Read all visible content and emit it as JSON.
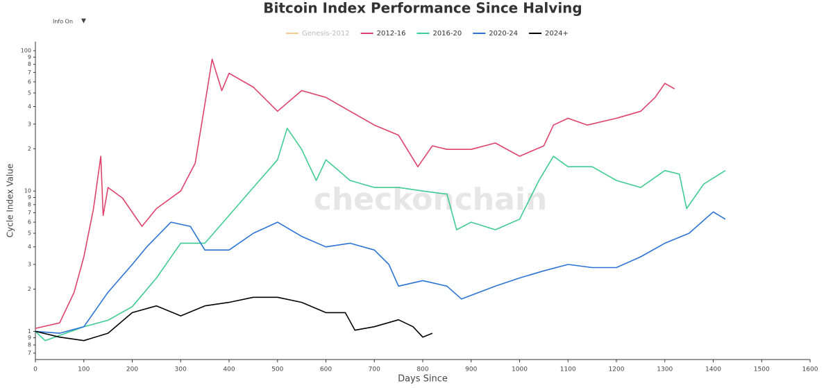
{
  "controls": {
    "info_toggle": "Info On",
    "dropdown_icon": "▼"
  },
  "chart_data": {
    "type": "line",
    "title": "Bitcoin Index Performance Since Halving",
    "watermark": "checkonchain",
    "x_label": "Days Since",
    "y_label": "Cycle Index Value",
    "log_y": true,
    "legend": "top",
    "xlim": [
      0,
      1600
    ],
    "xticks": [
      0,
      100,
      200,
      300,
      400,
      500,
      600,
      700,
      800,
      900,
      1000,
      1100,
      1200,
      1300,
      1400,
      1500,
      1600
    ],
    "ylim": [
      0.63,
      116
    ],
    "yticks": [
      {
        "value": 0.7,
        "label": "7"
      },
      {
        "value": 0.8,
        "label": "8"
      },
      {
        "value": 0.9,
        "label": "9"
      },
      1,
      2,
      3,
      4,
      5,
      6,
      7,
      8,
      9,
      10,
      {
        "value": 20,
        "label": "2"
      },
      {
        "value": 30,
        "label": "3"
      },
      {
        "value": 40,
        "label": "4"
      },
      {
        "value": 50,
        "label": "5"
      },
      {
        "value": 60,
        "label": "6"
      },
      {
        "value": 70,
        "label": "7"
      },
      {
        "value": 80,
        "label": "8"
      },
      {
        "value": 90,
        "label": "9"
      },
      100
    ],
    "series": [
      {
        "name": "Genesis-2012",
        "color": "#f5c992",
        "visible": false
      },
      {
        "name": "2012-16",
        "color": "#e0416b",
        "x": [
          0,
          50,
          80,
          100,
          120,
          135,
          140,
          150,
          180,
          220,
          250,
          300,
          330,
          350,
          365,
          385,
          400,
          450,
          500,
          550,
          600,
          650,
          700,
          750,
          790,
          820,
          850,
          900,
          950,
          1000,
          1050,
          1070,
          1100,
          1140,
          1200,
          1250,
          1280,
          1300,
          1320
        ],
        "values": [
          1.05,
          1.15,
          1.9,
          3.4,
          7.5,
          17.7,
          6.7,
          10.6,
          8.9,
          5.6,
          7.5,
          10,
          15.8,
          41.5,
          87,
          52,
          69,
          55,
          37,
          52,
          46.5,
          37,
          29.5,
          25,
          14.9,
          21,
          19.8,
          19.8,
          22,
          17.7,
          21,
          29.5,
          33,
          29.5,
          33,
          37,
          46.5,
          58.5,
          53.5
        ]
      },
      {
        "name": "2016-20",
        "color": "#3dcc91",
        "x": [
          0,
          20,
          100,
          150,
          200,
          250,
          300,
          350,
          400,
          450,
          500,
          520,
          550,
          580,
          600,
          650,
          700,
          750,
          800,
          850,
          870,
          900,
          950,
          1000,
          1040,
          1070,
          1100,
          1150,
          1200,
          1250,
          1300,
          1330,
          1345,
          1380,
          1425
        ],
        "values": [
          1,
          0.86,
          1.08,
          1.2,
          1.5,
          2.4,
          4.25,
          4.25,
          6.7,
          10.6,
          16.7,
          28,
          19.8,
          11.9,
          16.7,
          11.9,
          10.6,
          10.6,
          10,
          9.5,
          5.3,
          6,
          5.3,
          6.3,
          11.9,
          17.7,
          14.9,
          14.9,
          11.9,
          10.6,
          14,
          13.2,
          7.5,
          11.2,
          14
        ]
      },
      {
        "name": "2020-24",
        "color": "#2a73d6",
        "x": [
          0,
          50,
          100,
          150,
          200,
          230,
          280,
          320,
          350,
          400,
          450,
          500,
          550,
          600,
          650,
          700,
          730,
          750,
          800,
          850,
          880,
          950,
          1000,
          1050,
          1100,
          1150,
          1200,
          1250,
          1300,
          1350,
          1400,
          1425
        ],
        "values": [
          1,
          0.97,
          1.08,
          1.9,
          3.0,
          4.0,
          6,
          5.6,
          3.8,
          3.8,
          5.0,
          6,
          4.75,
          4,
          4.25,
          3.8,
          3.0,
          2.1,
          2.3,
          2.1,
          1.7,
          2.1,
          2.4,
          2.7,
          3.0,
          2.85,
          2.85,
          3.4,
          4.25,
          5.0,
          7.1,
          6.3
        ]
      },
      {
        "name": "2024+",
        "color": "#000000",
        "x": [
          0,
          50,
          100,
          150,
          200,
          250,
          300,
          350,
          400,
          450,
          500,
          550,
          600,
          640,
          660,
          700,
          750,
          780,
          800,
          820
        ],
        "values": [
          1,
          0.91,
          0.86,
          0.97,
          1.36,
          1.52,
          1.29,
          1.52,
          1.61,
          1.75,
          1.75,
          1.61,
          1.36,
          1.36,
          1.02,
          1.08,
          1.21,
          1.08,
          0.91,
          0.97
        ]
      }
    ]
  }
}
